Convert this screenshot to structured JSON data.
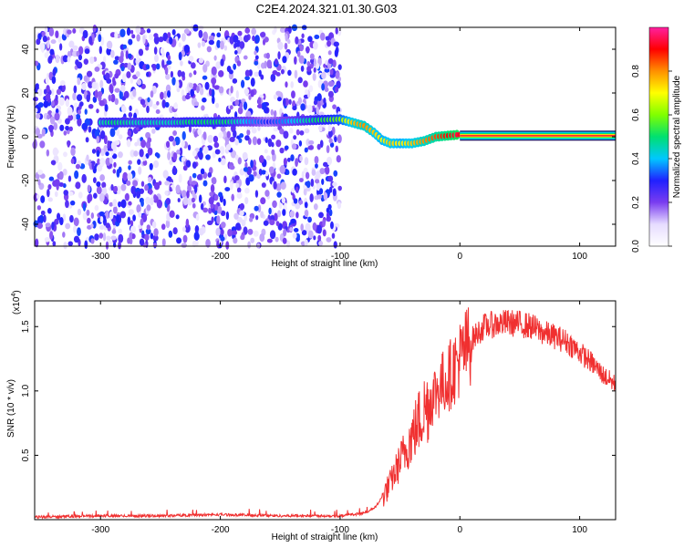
{
  "figure": {
    "title": "C2E4.2024.321.01.30.G03"
  },
  "chart_data": [
    {
      "type": "heatmap",
      "id": "spectrogram",
      "xlabel": "Height of straight line (km)",
      "ylabel": "Frequency (Hz)",
      "xlim": [
        -355,
        130
      ],
      "ylim": [
        -50,
        50
      ],
      "xticks": [
        -300,
        -200,
        -100,
        0,
        100
      ],
      "yticks": [
        -40,
        -20,
        0,
        20,
        40
      ],
      "colorbar": {
        "label": "Normalized spectral amplitude",
        "range": [
          0.0,
          1.0
        ],
        "ticks": [
          0.0,
          0.2,
          0.4,
          0.6,
          0.8
        ],
        "colormap": [
          "#ffffff",
          "#e6dcff",
          "#7a3df0",
          "#2020ff",
          "#00c8ff",
          "#00e070",
          "#80ff00",
          "#ffff00",
          "#ff9000",
          "#ff0000",
          "#ff20a0"
        ]
      },
      "noise_region": {
        "x_range": [
          -355,
          -100
        ],
        "y_range": [
          -50,
          50
        ]
      },
      "signal_track": [
        {
          "x": -300,
          "y": 6.5,
          "amp": 0.45
        },
        {
          "x": -290,
          "y": 6.5,
          "amp": 0.5
        },
        {
          "x": -270,
          "y": 6.5,
          "amp": 0.45
        },
        {
          "x": -240,
          "y": 6.5,
          "amp": 0.45
        },
        {
          "x": -228,
          "y": 6.7,
          "amp": 0.5
        },
        {
          "x": -210,
          "y": 6.7,
          "amp": 0.5
        },
        {
          "x": -195,
          "y": 6.8,
          "amp": 0.5
        },
        {
          "x": -180,
          "y": 7.0,
          "amp": 0.4
        },
        {
          "x": -160,
          "y": 6.8,
          "amp": 0.3
        },
        {
          "x": -100,
          "y": 8.0,
          "amp": 0.6
        },
        {
          "x": -90,
          "y": 6.5,
          "amp": 0.75
        },
        {
          "x": -80,
          "y": 5.0,
          "amp": 0.8
        },
        {
          "x": -72,
          "y": 2.0,
          "amp": 0.75
        },
        {
          "x": -65,
          "y": -1.5,
          "amp": 0.7
        },
        {
          "x": -58,
          "y": -3.0,
          "amp": 0.75
        },
        {
          "x": -50,
          "y": -3.0,
          "amp": 0.7
        },
        {
          "x": -40,
          "y": -3.0,
          "amp": 0.75
        },
        {
          "x": -30,
          "y": -2.0,
          "amp": 0.8
        },
        {
          "x": -20,
          "y": 0.0,
          "amp": 0.85
        },
        {
          "x": -10,
          "y": 0.5,
          "amp": 0.9
        },
        {
          "x": 0,
          "y": 1.0,
          "amp": 0.95
        },
        {
          "x": 130,
          "y": 0.5,
          "amp": 1.0
        }
      ]
    },
    {
      "type": "line",
      "id": "snr",
      "xlabel": "Height of straight line (km)",
      "ylabel": "SNR (10 * v/v)",
      "yscale_label": "(x10",
      "yscale_exp": "4",
      "xlim": [
        -355,
        130
      ],
      "ylim": [
        0,
        1.7
      ],
      "xticks": [
        -300,
        -200,
        -100,
        0,
        100
      ],
      "yticks": [
        0.5,
        1.0,
        1.5
      ],
      "color": "#f03030",
      "series": [
        {
          "x": [
            -355,
            -300,
            -250,
            -200,
            -150,
            -100,
            -80,
            -70,
            -60,
            -50,
            -45,
            -40,
            -30,
            -20,
            -10,
            0,
            10,
            20,
            30,
            40,
            50,
            60,
            70,
            80,
            90,
            100,
            110,
            120,
            130
          ],
          "values": [
            0.02,
            0.03,
            0.03,
            0.04,
            0.03,
            0.03,
            0.05,
            0.1,
            0.25,
            0.45,
            0.55,
            0.65,
            0.85,
            1.0,
            1.1,
            1.25,
            1.4,
            1.5,
            1.52,
            1.53,
            1.52,
            1.5,
            1.45,
            1.42,
            1.38,
            1.3,
            1.22,
            1.12,
            1.05
          ]
        }
      ]
    }
  ]
}
